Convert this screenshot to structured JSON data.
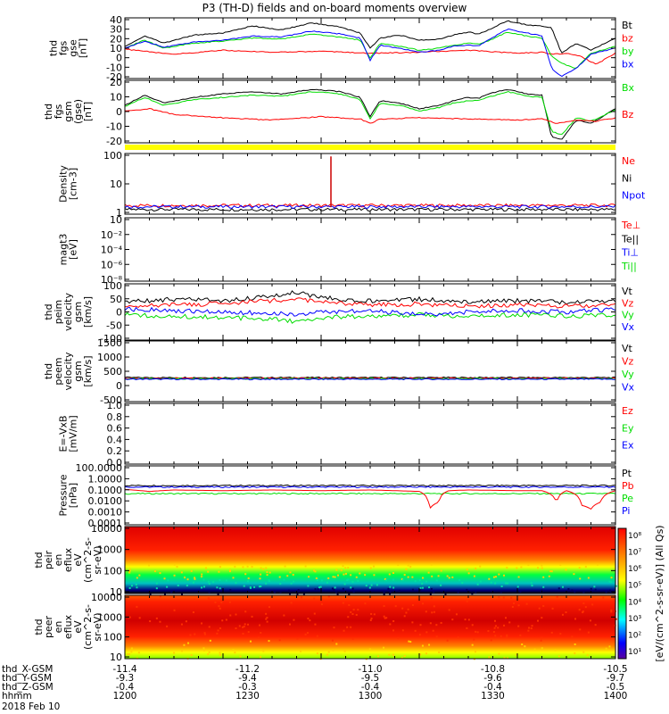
{
  "title": "P3 (TH-D) fields and on-board moments overview",
  "chart_data": {
    "type": "line",
    "title": "P3 (TH-D) fields and on-board moments overview",
    "panels": [
      {
        "id": "fgs",
        "ylabel": [
          "thd",
          "fgs",
          "gse",
          "[nT]"
        ],
        "ylim": [
          -20,
          40
        ],
        "yticks": [
          "40",
          "30",
          "20",
          "10",
          "0",
          "-10",
          "-20"
        ],
        "legend": [
          {
            "name": "Bt",
            "color": "#000000"
          },
          {
            "name": "bz",
            "color": "#ff0000"
          },
          {
            "name": "by",
            "color": "#00dd00"
          },
          {
            "name": "bx",
            "color": "#0000ff"
          }
        ],
        "series": [
          {
            "name": "Bt",
            "color": "#000000",
            "x": [
              0,
              0.04,
              0.08,
              0.14,
              0.2,
              0.26,
              0.32,
              0.38,
              0.44,
              0.48,
              0.5,
              0.52,
              0.56,
              0.6,
              0.64,
              0.67,
              0.7,
              0.72,
              0.74,
              0.78,
              0.8,
              0.82,
              0.85,
              0.87,
              0.89,
              0.92,
              0.95,
              1.0
            ],
            "y": [
              12,
              22,
              15,
              23,
              25,
              32,
              28,
              35,
              31,
              25,
              10,
              20,
              23,
              18,
              19,
              23,
              26,
              24,
              28,
              37,
              35,
              33,
              32,
              30,
              5,
              15,
              8,
              20
            ]
          },
          {
            "name": "bz",
            "color": "#ff0000",
            "x": [
              0,
              0.1,
              0.2,
              0.3,
              0.4,
              0.5,
              0.6,
              0.7,
              0.8,
              0.85,
              0.87,
              0.9,
              0.93,
              0.96,
              1.0
            ],
            "y": [
              9,
              4,
              8,
              6,
              7,
              5,
              6,
              8,
              5,
              6,
              4,
              5,
              2,
              -6,
              5
            ]
          },
          {
            "name": "by",
            "color": "#00dd00",
            "x": [
              0,
              0.04,
              0.08,
              0.14,
              0.2,
              0.26,
              0.32,
              0.38,
              0.44,
              0.48,
              0.5,
              0.52,
              0.56,
              0.6,
              0.64,
              0.67,
              0.7,
              0.72,
              0.74,
              0.78,
              0.8,
              0.82,
              0.85,
              0.87,
              0.89,
              0.92,
              0.95,
              1.0
            ],
            "y": [
              10,
              18,
              10,
              15,
              17,
              20,
              19,
              24,
              21,
              18,
              0,
              15,
              12,
              8,
              10,
              13,
              15,
              14,
              17,
              26,
              24,
              22,
              20,
              2,
              -5,
              -10,
              5,
              12
            ]
          },
          {
            "name": "bx",
            "color": "#0000ff",
            "x": [
              0,
              0.04,
              0.08,
              0.14,
              0.2,
              0.26,
              0.32,
              0.38,
              0.44,
              0.48,
              0.5,
              0.52,
              0.56,
              0.6,
              0.64,
              0.67,
              0.7,
              0.72,
              0.74,
              0.78,
              0.8,
              0.82,
              0.85,
              0.87,
              0.89,
              0.92,
              0.95,
              1.0
            ],
            "y": [
              10,
              17,
              11,
              16,
              18,
              22,
              21,
              27,
              24,
              20,
              -2,
              13,
              10,
              6,
              8,
              12,
              13,
              12,
              18,
              29,
              27,
              25,
              22,
              -10,
              -18,
              -10,
              4,
              10
            ]
          }
        ]
      },
      {
        "id": "fgs-gsm",
        "ylabel": [
          "thd",
          "fgs",
          "gsm",
          "(gse)",
          "[nT]"
        ],
        "ylim": [
          -25,
          30
        ],
        "yticks": [
          "20",
          "10",
          "0",
          "-10",
          "-20"
        ],
        "legend": [
          {
            "name": "Bx",
            "color": "#00dd00"
          },
          {
            "name": "Bz",
            "color": "#ff0000"
          }
        ],
        "series": [
          {
            "name": "Bt",
            "color": "#000000",
            "x": [
              0,
              0.04,
              0.08,
              0.14,
              0.2,
              0.26,
              0.32,
              0.38,
              0.44,
              0.48,
              0.5,
              0.52,
              0.56,
              0.6,
              0.64,
              0.67,
              0.7,
              0.72,
              0.74,
              0.78,
              0.8,
              0.82,
              0.85,
              0.87,
              0.89,
              0.92,
              0.95,
              1.0
            ],
            "y": [
              8,
              17,
              10,
              15,
              18,
              20,
              18,
              22,
              20,
              15,
              -2,
              12,
              10,
              5,
              8,
              12,
              15,
              14,
              18,
              22,
              20,
              18,
              17,
              -20,
              -22,
              -5,
              -8,
              5
            ]
          },
          {
            "name": "Bx",
            "color": "#00dd00",
            "x": [
              0,
              0.04,
              0.08,
              0.14,
              0.2,
              0.26,
              0.32,
              0.38,
              0.44,
              0.48,
              0.5,
              0.52,
              0.56,
              0.6,
              0.64,
              0.67,
              0.7,
              0.72,
              0.74,
              0.78,
              0.8,
              0.82,
              0.85,
              0.87,
              0.89,
              0.92,
              0.95,
              1.0
            ],
            "y": [
              7,
              15,
              8,
              13,
              15,
              17,
              16,
              20,
              18,
              13,
              -4,
              10,
              8,
              3,
              6,
              10,
              12,
              12,
              15,
              20,
              18,
              16,
              15,
              -15,
              -18,
              -3,
              -6,
              4
            ]
          },
          {
            "name": "Bz",
            "color": "#ff0000",
            "x": [
              0,
              0.05,
              0.1,
              0.2,
              0.3,
              0.4,
              0.48,
              0.5,
              0.52,
              0.6,
              0.7,
              0.8,
              0.85,
              0.88,
              0.92,
              0.96,
              1.0
            ],
            "y": [
              3,
              5,
              0,
              -3,
              -5,
              -2,
              -4,
              -8,
              -4,
              -3,
              -4,
              -5,
              -4,
              -8,
              -5,
              -6,
              -3
            ]
          }
        ]
      },
      {
        "id": "density",
        "ylabel": [
          "Density",
          "[cm-3]"
        ],
        "ylim": [
          0.5,
          200
        ],
        "log": true,
        "yticks": [
          "100",
          "10",
          "1"
        ],
        "legend": [
          {
            "name": "Ne",
            "color": "#ff0000"
          },
          {
            "name": "Ni",
            "color": "#000000"
          },
          {
            "name": "Npot",
            "color": "#0000ff"
          }
        ],
        "series": [
          {
            "name": "Ni",
            "color": "#000000",
            "const": 0.8
          },
          {
            "name": "Ne",
            "color": "#ff0000",
            "const": 1.2
          },
          {
            "name": "Npot",
            "color": "#0000ff",
            "const": 1.05
          }
        ]
      },
      {
        "id": "temp",
        "ylabel": [
          "magt3",
          "[eV]"
        ],
        "ylim": [
          1e-09,
          100
        ],
        "log": true,
        "yticks": [
          "10",
          "10⁻²",
          "10⁻⁴",
          "10⁻⁶",
          "10⁻⁸"
        ],
        "legend": [
          {
            "name": "Te⊥",
            "color": "#ff0000"
          },
          {
            "name": "Te||",
            "color": "#000000"
          },
          {
            "name": "Ti⊥",
            "color": "#0000ff"
          },
          {
            "name": "Ti||",
            "color": "#00dd00"
          }
        ],
        "series": []
      },
      {
        "id": "vi",
        "ylabel": [
          "thd",
          "peim",
          "velocity",
          "gsm",
          "[km/s]"
        ],
        "ylim": [
          -100,
          100
        ],
        "yticks": [
          "100",
          "50",
          "0",
          "-50",
          "-100"
        ],
        "legend": [
          {
            "name": "Vt",
            "color": "#000000"
          },
          {
            "name": "Vz",
            "color": "#ff0000"
          },
          {
            "name": "Vy",
            "color": "#00dd00"
          },
          {
            "name": "Vx",
            "color": "#0000ff"
          }
        ],
        "series": [
          {
            "name": "Vt",
            "color": "#000000",
            "x": [
              0,
              0.1,
              0.2,
              0.3,
              0.35,
              0.4,
              0.5,
              0.6,
              0.7,
              0.8,
              0.9,
              1.0
            ],
            "y": [
              35,
              45,
              40,
              55,
              70,
              50,
              40,
              45,
              35,
              40,
              35,
              40
            ]
          },
          {
            "name": "Vz",
            "color": "#ff0000",
            "x": [
              0,
              0.1,
              0.2,
              0.3,
              0.35,
              0.4,
              0.5,
              0.6,
              0.7,
              0.8,
              0.9,
              1.0
            ],
            "y": [
              20,
              25,
              30,
              40,
              45,
              35,
              25,
              28,
              20,
              25,
              20,
              25
            ]
          },
          {
            "name": "Vy",
            "color": "#00dd00",
            "x": [
              0,
              0.1,
              0.2,
              0.3,
              0.35,
              0.4,
              0.5,
              0.6,
              0.7,
              0.8,
              0.9,
              1.0
            ],
            "y": [
              -10,
              -15,
              -20,
              -25,
              -35,
              -20,
              -15,
              -10,
              -15,
              -10,
              -15,
              -10
            ]
          },
          {
            "name": "Vx",
            "color": "#0000ff",
            "x": [
              0,
              0.1,
              0.2,
              0.3,
              0.35,
              0.4,
              0.5,
              0.6,
              0.7,
              0.8,
              0.9,
              1.0
            ],
            "y": [
              10,
              5,
              0,
              -5,
              -10,
              0,
              5,
              -10,
              0,
              5,
              0,
              10
            ]
          }
        ]
      },
      {
        "id": "ve",
        "ylabel": [
          "thd",
          "peem",
          "velocity",
          "gsm",
          "[km/s]"
        ],
        "ylim": [
          -1000,
          1600
        ],
        "yticks": [
          "1500",
          "1000",
          "500",
          "0",
          "-500"
        ],
        "legend": [
          {
            "name": "Vt",
            "color": "#000000"
          },
          {
            "name": "Vz",
            "color": "#ff0000"
          },
          {
            "name": "Vy",
            "color": "#00dd00"
          },
          {
            "name": "Vx",
            "color": "#0000ff"
          }
        ],
        "series": [
          {
            "name": "Vt",
            "color": "#000000",
            "const": 30
          },
          {
            "name": "Vz",
            "color": "#ff0000",
            "const": 0
          },
          {
            "name": "Vy",
            "color": "#00dd00",
            "const": -20
          },
          {
            "name": "Vx",
            "color": "#0000ff",
            "const": -40
          }
        ]
      },
      {
        "id": "efield",
        "ylabel": [
          "E=-VxB",
          "[mV/m]"
        ],
        "ylim": [
          0,
          1
        ],
        "yticks": [
          "1.0",
          "0.8",
          "0.6",
          "0.4",
          "0.2",
          "0.0"
        ],
        "legend": [
          {
            "name": "Ez",
            "color": "#ff0000"
          },
          {
            "name": "Ey",
            "color": "#00dd00"
          },
          {
            "name": "Ex",
            "color": "#0000ff"
          }
        ],
        "series": []
      },
      {
        "id": "pressure",
        "ylabel": [
          "Pressure",
          "[nPa]"
        ],
        "ylim": [
          0.0001,
          100
        ],
        "log": true,
        "yticks": [
          "100.0000",
          "1.0000",
          "0.1000",
          "0.0100",
          "0.0010",
          "0.0001"
        ],
        "legend": [
          {
            "name": "Pt",
            "color": "#000000"
          },
          {
            "name": "Pb",
            "color": "#ff0000"
          },
          {
            "name": "Pe",
            "color": "#00dd00"
          },
          {
            "name": "Pi",
            "color": "#0000ff"
          }
        ],
        "series": [
          {
            "name": "Pt",
            "color": "#000000",
            "const": 1.0
          },
          {
            "name": "Pi",
            "color": "#0000ff",
            "const": 0.7
          },
          {
            "name": "Pe",
            "color": "#00dd00",
            "const": 0.15
          },
          {
            "name": "Pb",
            "color": "#ff0000",
            "x": [
              0,
              0.05,
              0.1,
              0.2,
              0.3,
              0.4,
              0.5,
              0.55,
              0.6,
              0.62,
              0.64,
              0.66,
              0.7,
              0.8,
              0.85,
              0.88,
              0.9,
              0.93,
              0.95,
              0.97,
              1.0
            ],
            "y": [
              0.4,
              0.25,
              0.35,
              0.3,
              0.35,
              0.3,
              0.35,
              0.3,
              0.25,
              0.003,
              0.02,
              0.3,
              0.35,
              0.3,
              0.3,
              0.01,
              0.3,
              0.01,
              0.004,
              0.02,
              0.3
            ]
          }
        ]
      },
      {
        "id": "ion-spec",
        "ylabel": [
          "thd",
          "peir",
          "en",
          "eflux",
          "eV",
          "(cm^2-s-",
          "sr-eV)"
        ],
        "ylim": [
          5,
          30000
        ],
        "log": true,
        "yticks": [
          "10000",
          "1000",
          "100",
          "10"
        ],
        "spectrogram": true
      },
      {
        "id": "elec-spec",
        "ylabel": [
          "thd",
          "peer",
          "en",
          "eflux",
          "eV",
          "(cm^2-s-",
          "sr-eV)"
        ],
        "ylim": [
          5,
          30000
        ],
        "log": true,
        "yticks": [
          "10000",
          "1000",
          "100",
          "10"
        ],
        "spectrogram": true
      }
    ],
    "colorbar": {
      "label": "[eV/(cm^2-s-sr-eV)] (All Qs)",
      "ticks": [
        "10⁸",
        "10⁷",
        "10⁶",
        "10⁵",
        "10⁴",
        "10³",
        "10²",
        "10¹"
      ]
    },
    "xaxis": {
      "rows": [
        {
          "label": "thd_X-GSM",
          "values": [
            "-11.4",
            "-11.2",
            "-11.0",
            "-10.8",
            "-10.5"
          ]
        },
        {
          "label": "thd_Y-GSM",
          "values": [
            "-9.3",
            "-9.4",
            "-9.5",
            "-9.6",
            "-9.7"
          ]
        },
        {
          "label": "thd_Z-GSM",
          "values": [
            "-0.4",
            "-0.3",
            "-0.4",
            "-0.4",
            "-0.5"
          ]
        },
        {
          "label": "hhmm",
          "values": [
            "1200",
            "1230",
            "1300",
            "1330",
            "1400"
          ]
        }
      ],
      "date": "2018 Feb 10"
    }
  }
}
